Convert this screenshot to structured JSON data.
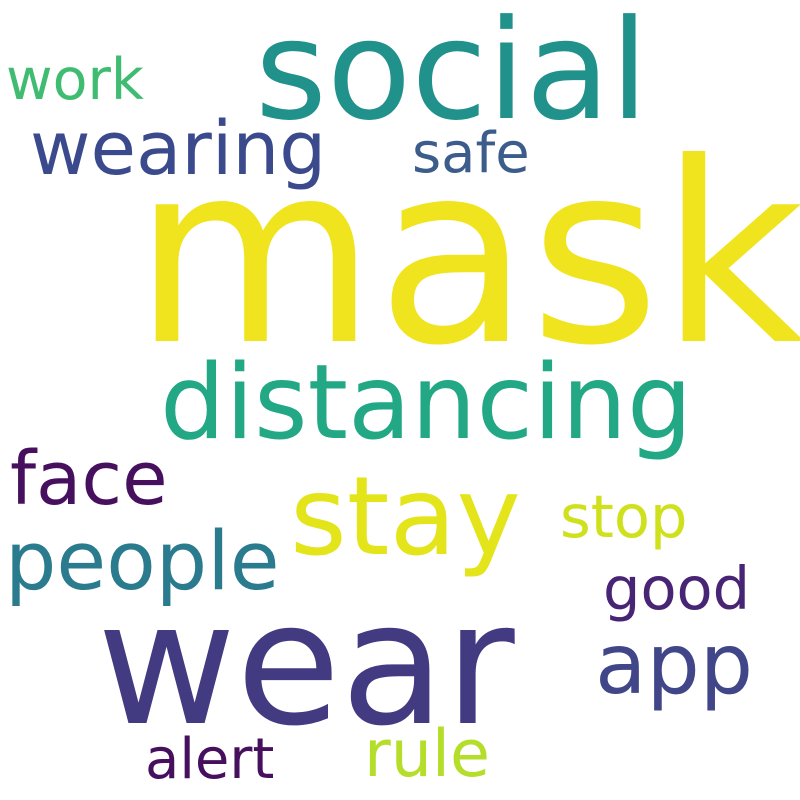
{
  "words": [
    {
      "id": "mask",
      "text": "mask",
      "color": "#f0e41e"
    },
    {
      "id": "social",
      "text": "social",
      "color": "#21918c"
    },
    {
      "id": "wear",
      "text": "wear",
      "color": "#433b82"
    },
    {
      "id": "distancing",
      "text": "distancing",
      "color": "#22a884"
    },
    {
      "id": "stay",
      "text": "stay",
      "color": "#e3e419"
    },
    {
      "id": "wearing",
      "text": "wearing",
      "color": "#3b4a8c"
    },
    {
      "id": "app",
      "text": "app",
      "color": "#404688"
    },
    {
      "id": "people",
      "text": "people",
      "color": "#2a7b8e"
    },
    {
      "id": "face",
      "text": "face",
      "color": "#46105e"
    },
    {
      "id": "safe",
      "text": "safe",
      "color": "#3c5d8b"
    },
    {
      "id": "stop",
      "text": "stop",
      "color": "#cfe11c"
    },
    {
      "id": "good",
      "text": "good",
      "color": "#482474"
    },
    {
      "id": "work",
      "text": "work",
      "color": "#3fbc72"
    },
    {
      "id": "alert",
      "text": "alert",
      "color": "#46105e"
    },
    {
      "id": "rule",
      "text": "rule",
      "color": "#b5de2b"
    }
  ]
}
